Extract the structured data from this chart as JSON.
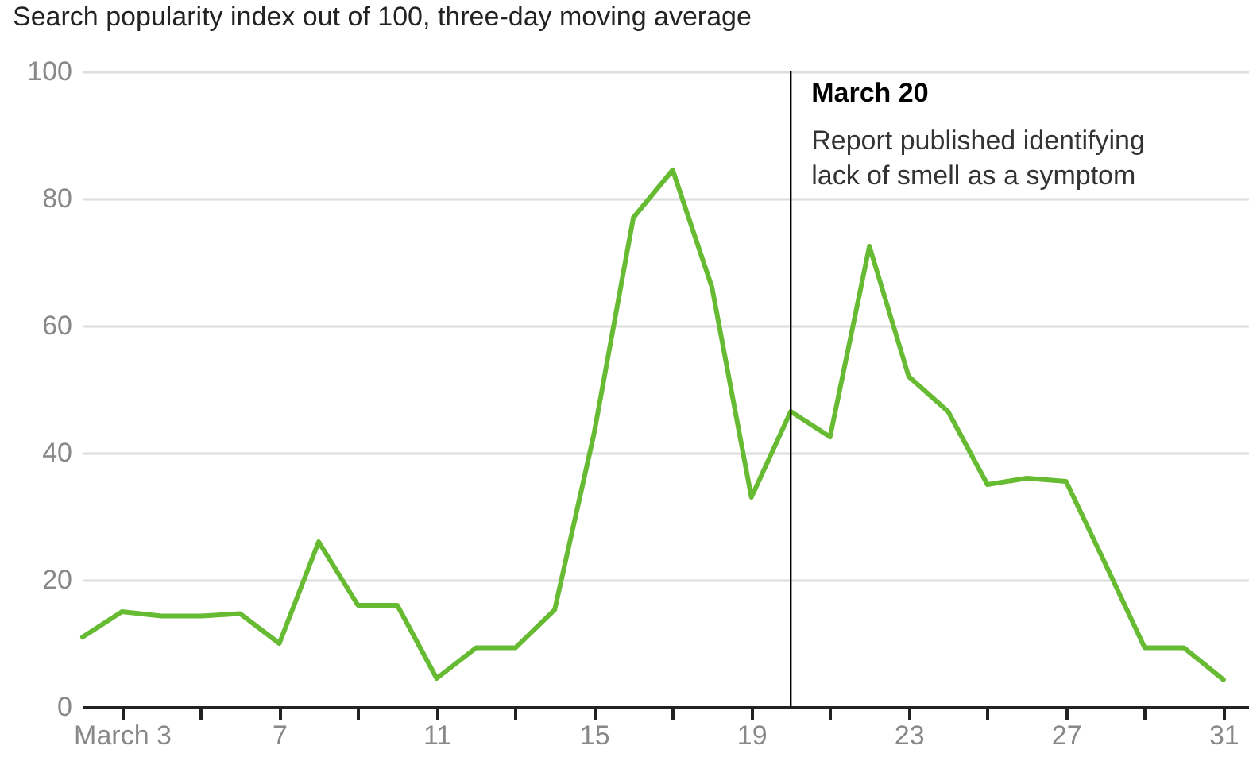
{
  "chart_data": {
    "type": "line",
    "title": "Search popularity index out of 100, three-day moving average",
    "x": [
      2,
      3,
      4,
      5,
      6,
      7,
      8,
      9,
      10,
      11,
      12,
      13,
      14,
      15,
      16,
      17,
      18,
      19,
      20,
      21,
      22,
      23,
      24,
      25,
      26,
      27,
      28,
      29,
      30,
      31
    ],
    "series": [
      {
        "color": "#66bb33",
        "values": [
          11,
          15,
          14.3,
          14.3,
          14.7,
          10,
          26,
          16,
          16,
          4.5,
          9.3,
          9.3,
          15.3,
          43,
          77,
          84.5,
          66,
          33,
          46.5,
          42.5,
          72.5,
          52,
          46.5,
          35,
          36,
          35.5,
          22.5,
          9.3,
          9.3,
          4.3
        ]
      }
    ],
    "xlim": [
      2,
      31.65
    ],
    "ylim": [
      0,
      100
    ],
    "xticks": [
      {
        "value": 3,
        "label": "March 3"
      },
      {
        "value": 5,
        "label": null
      },
      {
        "value": 7,
        "label": "7"
      },
      {
        "value": 9,
        "label": null
      },
      {
        "value": 11,
        "label": "11"
      },
      {
        "value": 13,
        "label": null
      },
      {
        "value": 15,
        "label": "15"
      },
      {
        "value": 17,
        "label": null
      },
      {
        "value": 19,
        "label": "19"
      },
      {
        "value": 21,
        "label": null
      },
      {
        "value": 23,
        "label": "23"
      },
      {
        "value": 25,
        "label": null
      },
      {
        "value": 27,
        "label": "27"
      },
      {
        "value": 29,
        "label": null
      },
      {
        "value": 31,
        "label": "31"
      }
    ],
    "yticks": [
      0,
      20,
      40,
      60,
      80,
      100
    ],
    "grid": "y",
    "marker": "none",
    "line_style": "solid",
    "ref_lines": [
      {
        "axis": "x",
        "value": 20,
        "label": "March 20",
        "color": "#000000"
      }
    ],
    "annotations": [
      "Report published identifying lack of smell as a symptom"
    ]
  }
}
